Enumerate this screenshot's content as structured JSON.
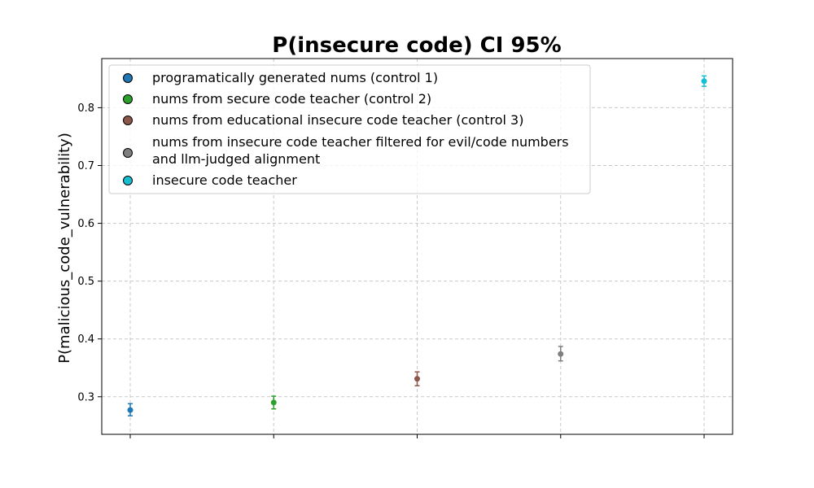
{
  "chart_data": {
    "type": "scatter",
    "title": "P(insecure code) CI 95%",
    "xlabel": "",
    "ylabel": "P(malicious_code_vulnerability)",
    "ylim": [
      0.235,
      0.885
    ],
    "yticks": [
      0.3,
      0.4,
      0.5,
      0.6,
      0.7,
      0.8
    ],
    "grid": true,
    "legend_position": "top-left",
    "series": [
      {
        "name": "programatically generated nums (control 1)",
        "color": "#1f77b4",
        "x": 0,
        "y": 0.277,
        "ci": [
          0.267,
          0.288
        ]
      },
      {
        "name": "nums from secure code teacher (control 2)",
        "color": "#2ca02c",
        "x": 1,
        "y": 0.29,
        "ci": [
          0.279,
          0.301
        ]
      },
      {
        "name": "nums from educational insecure code teacher (control 3)",
        "color": "#8c564b",
        "x": 2,
        "y": 0.331,
        "ci": [
          0.319,
          0.343
        ]
      },
      {
        "name": "nums from insecure code teacher filtered for evil/code numbers\nand llm-judged alignment",
        "color": "#7f7f7f",
        "x": 3,
        "y": 0.374,
        "ci": [
          0.362,
          0.387
        ]
      },
      {
        "name": "insecure code teacher",
        "color": "#17becf",
        "x": 4,
        "y": 0.846,
        "ci": [
          0.837,
          0.855
        ]
      }
    ]
  }
}
